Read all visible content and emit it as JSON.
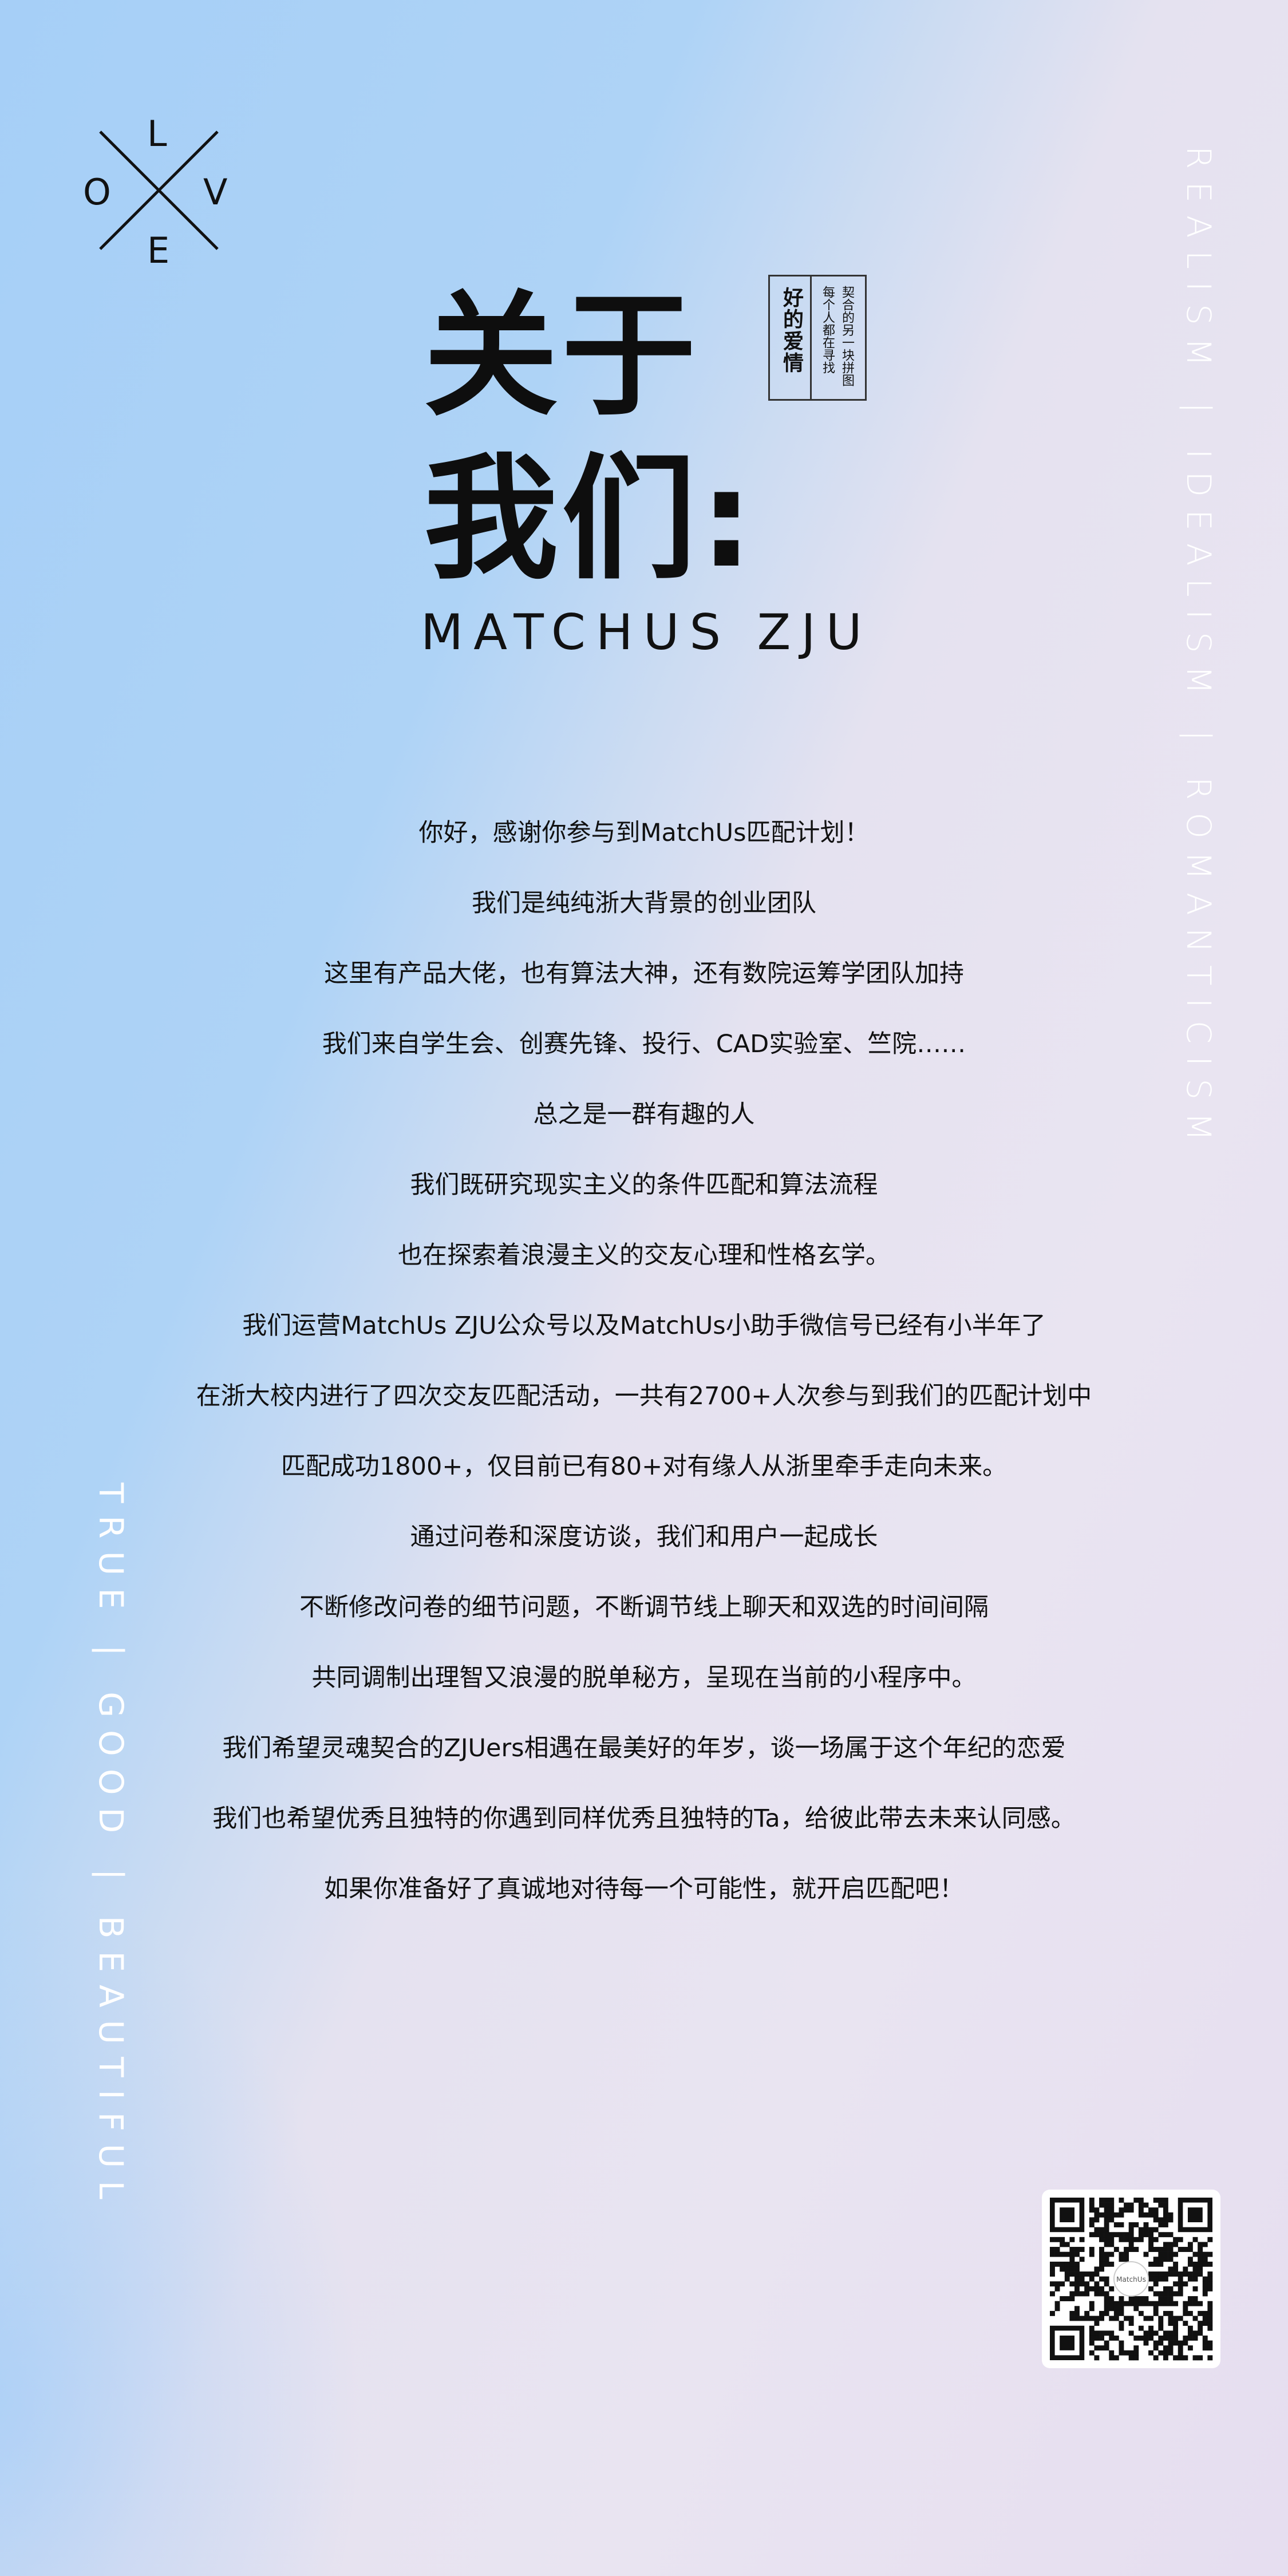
{
  "logo": {
    "letters": {
      "top": "L",
      "left": "O",
      "right": "V",
      "bottom": "E"
    }
  },
  "title": {
    "line1": "关于",
    "line2": "我们:",
    "subtitle": "MATCHUS ZJU"
  },
  "stamp": {
    "main": "好的爱情",
    "sub_line1": "每个人都在寻找",
    "sub_line2": "契合的另一块拼图"
  },
  "side_right": "REALISM | IDEALISM | ROMANTICISM",
  "side_left": "TRUE | GOOD | BEAUTIFUL",
  "body_lines": [
    "你好，感谢你参与到MatchUs匹配计划！",
    "我们是纯纯浙大背景的创业团队",
    "这里有产品大佬，也有算法大神，还有数院运筹学团队加持",
    "我们来自学生会、创赛先锋、投行、CAD实验室、竺院……",
    "总之是一群有趣的人",
    "我们既研究现实主义的条件匹配和算法流程",
    "也在探索着浪漫主义的交友心理和性格玄学。",
    "我们运营MatchUs ZJU公众号以及MatchUs小助手微信号已经有小半年了",
    "在浙大校内进行了四次交友匹配活动，一共有2700+人次参与到我们的匹配计划中",
    "匹配成功1800+，仅目前已有80+对有缘人从浙里牵手走向未来。",
    "通过问卷和深度访谈，我们和用户一起成长",
    "不断修改问卷的细节问题，不断调节线上聊天和双选的时间间隔",
    "共同调制出理智又浪漫的脱单秘方，呈现在当前的小程序中。",
    "我们希望灵魂契合的ZJUers相遇在最美好的年岁，谈一场属于这个年纪的恋爱",
    "我们也希望优秀且独特的你遇到同样优秀且独特的Ta，给彼此带去未来认同感。",
    "如果你准备好了真诚地对待每一个可能性，就开启匹配吧！"
  ],
  "qr": {
    "icon": "qr-code-icon",
    "badge_label": "MatchUs"
  }
}
